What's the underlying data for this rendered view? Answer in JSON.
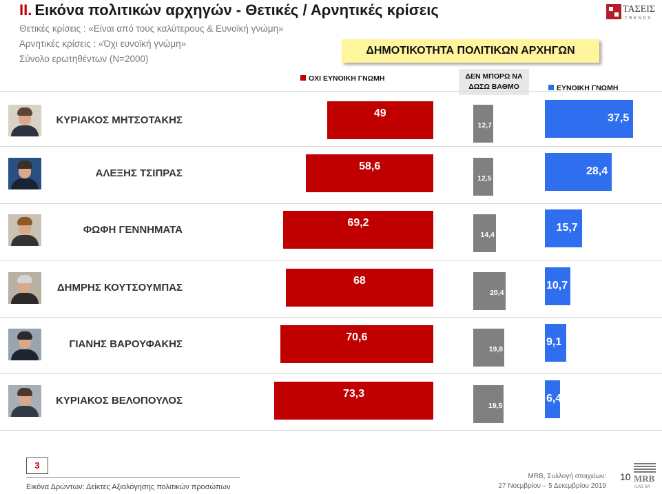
{
  "header": {
    "section_number": "II.",
    "title": "Εικόνα πολιτικών αρχηγών  - Θετικές / Αρνητικές κρίσεις",
    "subtitle_1": "Θετικές κρίσεις : «Είναι από τους καλύτερους &  Ευνοϊκή γνώμη»",
    "subtitle_2": "Αρνητικές κρίσεις : «Όχι ευνοϊκή γνώμη»",
    "subtitle_3": "Σύνολο ερωτηθέντων (N=2000)"
  },
  "logo": {
    "name": "ΤΑΣΕΙΣ",
    "tagline": "TRENDS",
    "brand_color": "#b71c2b"
  },
  "chart_data": {
    "type": "bar",
    "title": "ΔΗΜΟΤΙΚΟΤΗΤΑ ΠΟΛΙΤΙΚΩΝ ΑΡΧΗΓΩΝ",
    "categories": [
      "ΚΥΡΙΑΚΟΣ ΜΗΤΣΟΤΑΚΗΣ",
      "ΑΛΕΞΗΣ ΤΣΙΠΡΑΣ",
      "ΦΩΦΗ ΓΕΝΝΗΜΑΤΑ",
      "ΔΗΜΡΗΣ ΚΟΥΤΣΟΥΜΠΑΣ",
      "ΓΙΑΝΗΣ ΒΑΡΟΥΦΑΚΗΣ",
      "ΚΥΡΙΑΚΟΣ ΒΕΛΟΠΟΥΛΟΣ"
    ],
    "series": [
      {
        "name": "ΟΧΙ ΕΥΝΟΙΚΗ ΓΝΩΜΗ",
        "color": "#c00000",
        "values": [
          49,
          58.6,
          69.2,
          68,
          70.6,
          73.3
        ],
        "labels": [
          "49",
          "58,6",
          "69,2",
          "68",
          "70,6",
          "73,3"
        ]
      },
      {
        "name": "ΔΕΝ ΜΠΟΡΩ ΝΑ ΔΩΣΩ ΒΑΘΜΟ",
        "color": "#808080",
        "values": [
          12.7,
          12.5,
          14.4,
          20.4,
          19.8,
          19.5
        ],
        "labels": [
          "12,7",
          "12,5",
          "14,4",
          "20,4",
          "19,8",
          "19,5"
        ]
      },
      {
        "name": "ΕΥΝΟΙΚΗ ΓΝΩΜΗ",
        "color": "#2f6fef",
        "values": [
          37.5,
          28.4,
          15.7,
          10.7,
          9.1,
          6.4
        ],
        "labels": [
          "37,5",
          "28,4",
          "15,7",
          "10,7",
          "9,1",
          "6,4"
        ]
      }
    ]
  },
  "footer": {
    "page_box": "3",
    "left_text": "Εικόνα Δρώντων: Δείκτες Αξιολόγησης πολιτικών προσώπων",
    "source_line_1": "MRB, Συλλογή στοιχείων:",
    "source_line_2": "27 Νοεμβρίου – 5 Δεκεμβρίου 2019",
    "page_number": "10",
    "mrb_logo": "MRB",
    "mrb_sub": "ILAS SA"
  }
}
